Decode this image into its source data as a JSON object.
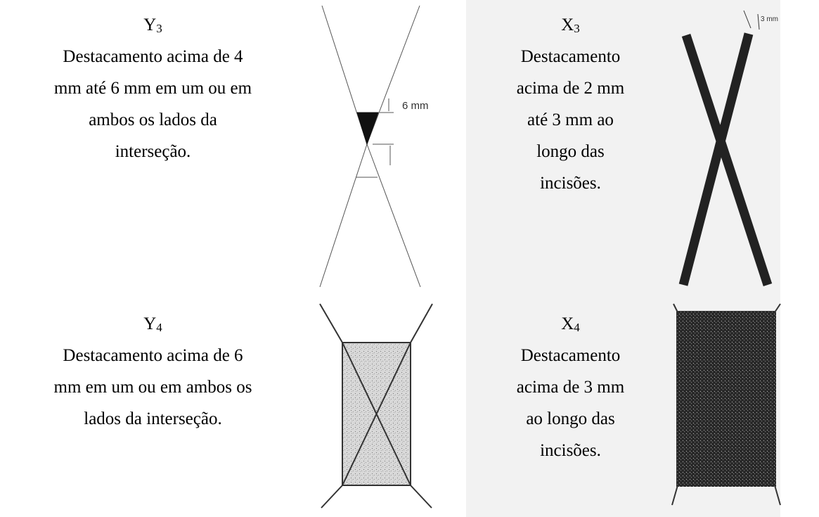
{
  "rows": [
    {
      "left": {
        "letter": "Y",
        "sub": "3",
        "lines": [
          "Destacamento acima de 4",
          "mm até 6 mm em um ou em",
          "ambos os lados da",
          "interseção."
        ]
      },
      "left_figure": {
        "label": "6 mm"
      },
      "right": {
        "letter": "X",
        "sub": "3",
        "lines": [
          "Destacamento",
          "acima de 2 mm",
          "até 3 mm ao",
          "longo das",
          "incisões."
        ]
      },
      "right_figure": {
        "label": "3 mm"
      }
    },
    {
      "left": {
        "letter": "Y",
        "sub": "4",
        "lines": [
          "Destacamento acima de 6",
          "mm em um ou em ambos os",
          "lados da interseção."
        ]
      },
      "right": {
        "letter": "X",
        "sub": "4",
        "lines": [
          "Destacamento",
          "acima de 3 mm",
          "ao longo das",
          "incisões."
        ]
      }
    }
  ]
}
